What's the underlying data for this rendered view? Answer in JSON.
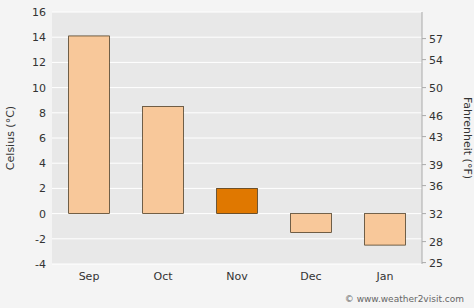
{
  "chart_data": {
    "type": "bar",
    "categories": [
      "Sep",
      "Oct",
      "Nov",
      "Dec",
      "Jan"
    ],
    "values": [
      14.1,
      8.5,
      2.0,
      -1.5,
      -2.5
    ],
    "colors": [
      "#f8c89a",
      "#f8c89a",
      "#e07800",
      "#f8c89a",
      "#f8c89a"
    ],
    "ylabel": "Celsius (°C)",
    "y2label": "Fahrenheit (°F)",
    "ylim": [
      -4,
      16
    ],
    "yticks": [
      -4,
      -2,
      0,
      2,
      4,
      6,
      8,
      10,
      12,
      14,
      16
    ],
    "y2lim": [
      24.8,
      60.8
    ],
    "y2ticks": [
      25,
      28,
      32,
      36,
      39,
      43,
      46,
      50,
      54,
      57
    ],
    "grid": true,
    "annotations": [
      "© www.weather2visit.com"
    ]
  }
}
